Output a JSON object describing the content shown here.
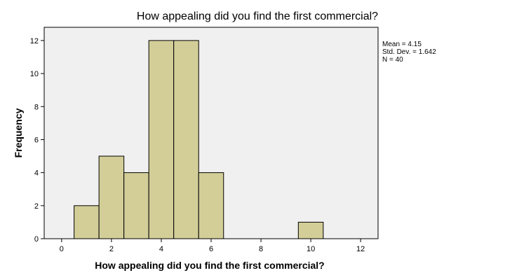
{
  "chart_data": {
    "type": "bar",
    "title": "How appealing did you find the first commercial?",
    "xlabel": "How appealing did you find the first commercial?",
    "ylabel": "Frequency",
    "bin_width": 1,
    "bins": [
      {
        "x": 1,
        "value": 2
      },
      {
        "x": 2,
        "value": 5
      },
      {
        "x": 3,
        "value": 4
      },
      {
        "x": 4,
        "value": 12
      },
      {
        "x": 5,
        "value": 12
      },
      {
        "x": 6,
        "value": 4
      },
      {
        "x": 10,
        "value": 1
      }
    ],
    "xlim": [
      -0.7,
      12.7
    ],
    "ylim": [
      0,
      12.8
    ],
    "xticks": [
      0,
      2,
      4,
      6,
      8,
      10,
      12
    ],
    "yticks": [
      0,
      2,
      4,
      6,
      8,
      10,
      12
    ],
    "grid": false,
    "bar_color": "#d3ce98",
    "plot_background": "#f0f0f0",
    "stats": [
      "Mean = 4.15",
      "Std. Dev. = 1.642",
      "N = 40"
    ],
    "stats_placement": "top-right"
  }
}
